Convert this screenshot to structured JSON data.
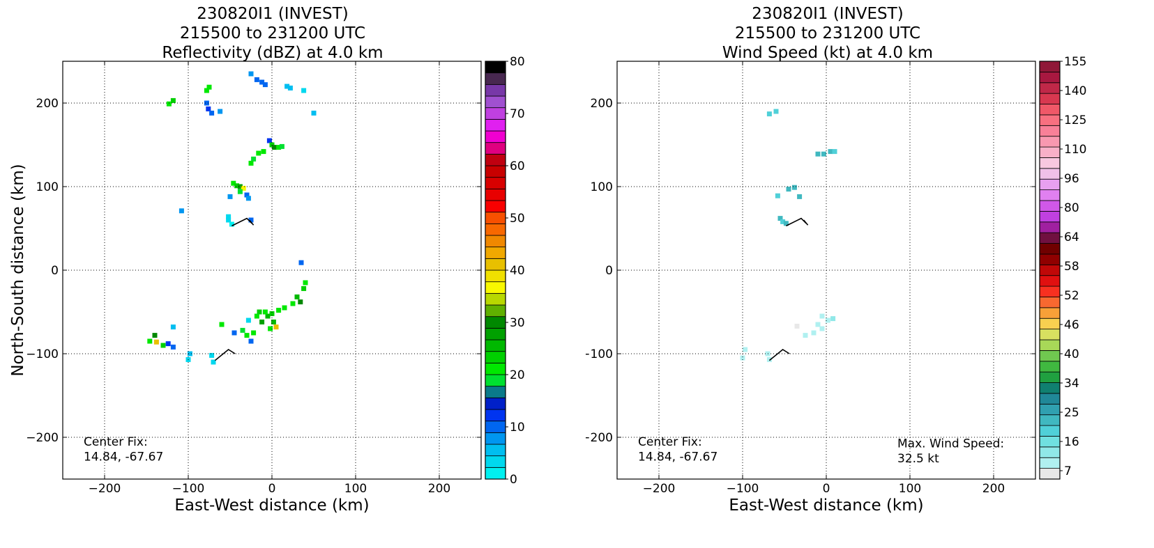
{
  "panels": [
    {
      "id": "reflectivity",
      "title": [
        "230820I1 (INVEST)",
        "215500 to 231200 UTC",
        "Reflectivity (dBZ) at 4.0 km"
      ],
      "xlabel": "East-West distance (km)",
      "ylabel": "North-South distance (km)",
      "center_fix": [
        "Center Fix:",
        "14.84, -67.67"
      ],
      "colorbar": {
        "tick_labels": [
          "0",
          "10",
          "20",
          "30",
          "40",
          "50",
          "60",
          "70",
          "80"
        ],
        "colors": [
          "#00f0f0",
          "#00d8ee",
          "#00bef0",
          "#0096f0",
          "#0066f0",
          "#0034f0",
          "#0020c8",
          "#0a7a8a",
          "#00e030",
          "#00e800",
          "#00d000",
          "#00b800",
          "#00a000",
          "#008800",
          "#60b000",
          "#b8d800",
          "#f8f800",
          "#f0e000",
          "#e8c000",
          "#f0a800",
          "#f08800",
          "#f86800",
          "#f85000",
          "#f80000",
          "#e80000",
          "#d80000",
          "#c80000",
          "#c00010",
          "#e00080",
          "#f000d0",
          "#e020f0",
          "#c040e0",
          "#a050d0",
          "#7838a8",
          "#482850",
          "#000000"
        ]
      }
    },
    {
      "id": "wind",
      "title": [
        "230820I1 (INVEST)",
        "215500 to 231200 UTC",
        "Wind Speed (kt) at 4.0 km"
      ],
      "xlabel": "East-West distance (km)",
      "ylabel": "North-South distance (km)",
      "center_fix": [
        "Center Fix:",
        "14.84, -67.67"
      ],
      "max_wind": [
        "Max. Wind Speed:",
        "32.5 kt"
      ],
      "colorbar": {
        "tick_labels": [
          "7",
          "16",
          "25",
          "34",
          "40",
          "46",
          "52",
          "58",
          "64",
          "80",
          "96",
          "110",
          "125",
          "140",
          "155"
        ],
        "colors": [
          "#e8e8e8",
          "#b0f0f0",
          "#90e8e8",
          "#70e0e0",
          "#50d0d8",
          "#40b8c0",
          "#30a0b0",
          "#208898",
          "#108070",
          "#20a040",
          "#40b840",
          "#70c850",
          "#a8d858",
          "#d8e060",
          "#f8d050",
          "#f8a038",
          "#f86830",
          "#f83020",
          "#e01010",
          "#c00808",
          "#900000",
          "#700000",
          "#701040",
          "#a020a0",
          "#c040e0",
          "#d058e8",
          "#e080f0",
          "#e8a0f0",
          "#f0c0e8",
          "#f8c8e0",
          "#f8b0c8",
          "#f898b0",
          "#f88098",
          "#f87080",
          "#f05868",
          "#d83850",
          "#c02848",
          "#a81840",
          "#901838"
        ]
      }
    }
  ],
  "axes": {
    "x_ticks": [
      "−200",
      "−100",
      "0",
      "100",
      "200"
    ],
    "y_ticks": [
      "200",
      "100",
      "0",
      "−100",
      "−200"
    ],
    "xlim": [
      -250,
      250
    ],
    "ylim": [
      -250,
      250
    ],
    "grid": true
  },
  "chart_data": [
    {
      "type": "heatmap",
      "title": "230820I1 (INVEST) 215500 to 231200 UTC Reflectivity (dBZ) at 4.0 km",
      "xlabel": "East-West distance (km)",
      "ylabel": "North-South distance (km)",
      "xlim": [
        -250,
        250
      ],
      "ylim": [
        -250,
        250
      ],
      "colorbar_range": [
        0,
        80
      ],
      "cells": [
        [
          -25,
          235,
          8
        ],
        [
          -18,
          228,
          10
        ],
        [
          -12,
          225,
          10
        ],
        [
          -8,
          222,
          9
        ],
        [
          18,
          220,
          5
        ],
        [
          22,
          218,
          5
        ],
        [
          38,
          215,
          4
        ],
        [
          -78,
          215,
          22
        ],
        [
          -75,
          219,
          20
        ],
        [
          -118,
          203,
          24
        ],
        [
          -123,
          199,
          22
        ],
        [
          -78,
          200,
          10
        ],
        [
          -76,
          193,
          12
        ],
        [
          -72,
          188,
          10
        ],
        [
          -62,
          190,
          8
        ],
        [
          50,
          188,
          5
        ],
        [
          -3,
          155,
          12
        ],
        [
          0,
          150,
          24
        ],
        [
          3,
          147,
          30
        ],
        [
          8,
          147,
          22
        ],
        [
          12,
          148,
          18
        ],
        [
          -10,
          142,
          20
        ],
        [
          -16,
          140,
          20
        ],
        [
          -22,
          133,
          18
        ],
        [
          -25,
          128,
          20
        ],
        [
          -46,
          104,
          20
        ],
        [
          -42,
          101,
          24
        ],
        [
          -38,
          100,
          28
        ],
        [
          -34,
          98,
          36
        ],
        [
          -38,
          94,
          18
        ],
        [
          -30,
          90,
          10
        ],
        [
          -28,
          86,
          8
        ],
        [
          -50,
          88,
          8
        ],
        [
          -108,
          71,
          8
        ],
        [
          -52,
          64,
          4
        ],
        [
          -52,
          60,
          3
        ],
        [
          -48,
          55,
          2
        ],
        [
          -25,
          60,
          10
        ],
        [
          35,
          9,
          10
        ],
        [
          40,
          -15,
          20
        ],
        [
          38,
          -22,
          24
        ],
        [
          30,
          -32,
          26
        ],
        [
          34,
          -38,
          30
        ],
        [
          25,
          -40,
          22
        ],
        [
          15,
          -45,
          20
        ],
        [
          8,
          -48,
          22
        ],
        [
          0,
          -52,
          24
        ],
        [
          -5,
          -55,
          26
        ],
        [
          -8,
          -50,
          20
        ],
        [
          -15,
          -50,
          24
        ],
        [
          -18,
          -55,
          22
        ],
        [
          -12,
          -62,
          28
        ],
        [
          2,
          -62,
          26
        ],
        [
          5,
          -68,
          40
        ],
        [
          -2,
          -70,
          22
        ],
        [
          -22,
          -75,
          20
        ],
        [
          -30,
          -78,
          22
        ],
        [
          -35,
          -72,
          18
        ],
        [
          -28,
          -60,
          4
        ],
        [
          -60,
          -65,
          20
        ],
        [
          -45,
          -75,
          10
        ],
        [
          -25,
          -85,
          10
        ],
        [
          -140,
          -78,
          30
        ],
        [
          -138,
          -86,
          42
        ],
        [
          -130,
          -90,
          24
        ],
        [
          -124,
          -88,
          12
        ],
        [
          -118,
          -92,
          10
        ],
        [
          -146,
          -85,
          22
        ],
        [
          -118,
          -68,
          6
        ],
        [
          -98,
          -100,
          6
        ],
        [
          -100,
          -107,
          4
        ],
        [
          -72,
          -102,
          4
        ],
        [
          -70,
          -110,
          3
        ]
      ]
    },
    {
      "type": "heatmap",
      "title": "230820I1 (INVEST) 215500 to 231200 UTC Wind Speed (kt) at 4.0 km",
      "xlabel": "East-West distance (km)",
      "ylabel": "North-South distance (km)",
      "xlim": [
        -250,
        250
      ],
      "ylim": [
        -250,
        250
      ],
      "max_wind_kt": 32.5,
      "cells": [
        [
          -68,
          187,
          26
        ],
        [
          -60,
          190,
          25
        ],
        [
          -10,
          139,
          27
        ],
        [
          -3,
          139,
          27
        ],
        [
          5,
          142,
          27
        ],
        [
          10,
          142,
          26
        ],
        [
          -45,
          97,
          27
        ],
        [
          -38,
          99,
          27
        ],
        [
          -32,
          88,
          27
        ],
        [
          -58,
          89,
          26
        ],
        [
          -55,
          62,
          27
        ],
        [
          -52,
          58,
          26
        ],
        [
          -48,
          56,
          27
        ],
        [
          -5,
          -55,
          14
        ],
        [
          2,
          -60,
          12
        ],
        [
          8,
          -58,
          16
        ],
        [
          -10,
          -65,
          13
        ],
        [
          -5,
          -70,
          12
        ],
        [
          -15,
          -75,
          12
        ],
        [
          -35,
          -67,
          10
        ],
        [
          -25,
          -78,
          12
        ],
        [
          -97,
          -95,
          14
        ],
        [
          -100,
          -105,
          13
        ],
        [
          -70,
          -100,
          14
        ],
        [
          -68,
          -107,
          12
        ]
      ]
    }
  ]
}
